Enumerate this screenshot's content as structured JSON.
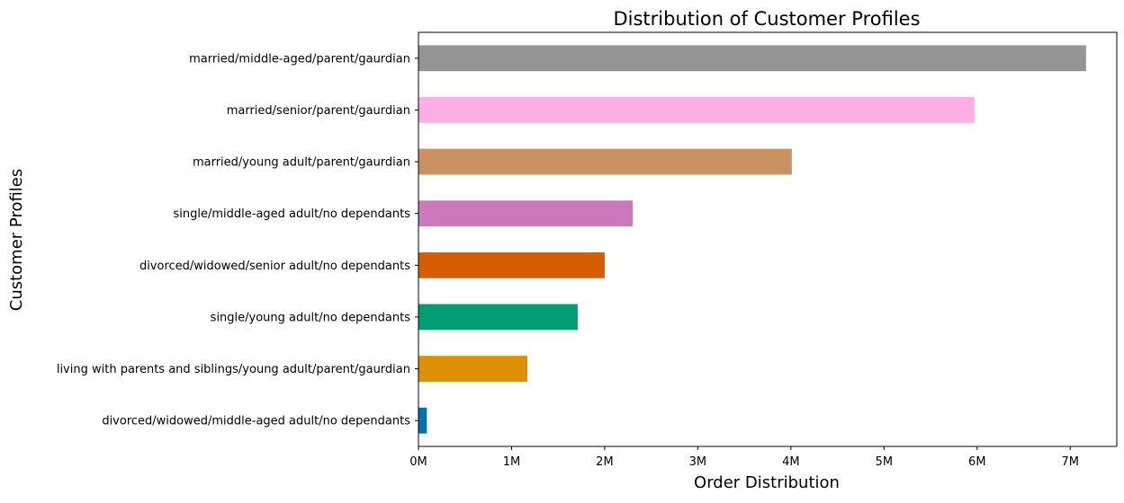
{
  "chart_data": {
    "type": "bar",
    "orientation": "horizontal",
    "title": "Distribution of Customer Profiles",
    "xlabel": "Order Distribution",
    "ylabel": "Customer Profiles",
    "xlim": [
      0,
      7.5
    ],
    "x_ticks": [
      {
        "value": 0,
        "label": "0M"
      },
      {
        "value": 1,
        "label": "1M"
      },
      {
        "value": 2,
        "label": "2M"
      },
      {
        "value": 3,
        "label": "3M"
      },
      {
        "value": 4,
        "label": "4M"
      },
      {
        "value": 5,
        "label": "5M"
      },
      {
        "value": 6,
        "label": "6M"
      },
      {
        "value": 7,
        "label": "7M"
      }
    ],
    "grid": false,
    "unit": "M",
    "categories": [
      "divorced/widowed/middle-aged adult/no dependants",
      "living with parents and siblings/young adult/parent/gaurdian",
      "single/young adult/no dependants",
      "divorced/widowed/senior adult/no dependants",
      "single/middle-aged adult/no dependants",
      "married/young adult/parent/gaurdian",
      "married/senior/parent/gaurdian",
      "married/middle-aged/parent/gaurdian"
    ],
    "values": [
      0.09,
      1.17,
      1.71,
      2.0,
      2.3,
      4.01,
      5.97,
      7.17
    ],
    "colors": [
      "#0173b2",
      "#de8f05",
      "#029e73",
      "#d55e00",
      "#cc78bc",
      "#ca9161",
      "#fbafe4",
      "#949494"
    ]
  }
}
